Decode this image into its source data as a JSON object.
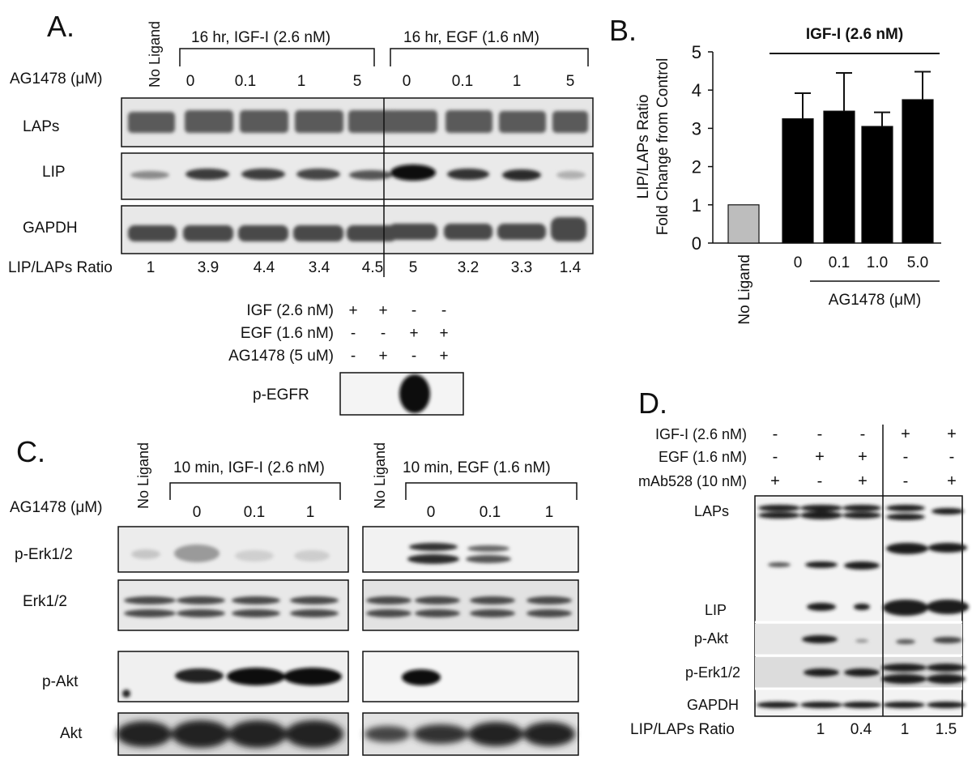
{
  "panel_a": {
    "letter": "A.",
    "lanes_top_label": "No Ligand",
    "group_igf_label": "16 hr,  IGF-I (2.6 nM)",
    "group_egf_label": "16 hr,  EGF (1.6 nM)",
    "ag_label": "AG1478 (μM)",
    "doses": [
      "0",
      "0.1",
      "1",
      "5",
      "0",
      "0.1",
      "1",
      "5"
    ],
    "blots": [
      "LAPs",
      "LIP",
      "GAPDH"
    ],
    "ratio_label": "LIP/LAPs Ratio",
    "ratios": [
      "1",
      "3.9",
      "4.4",
      "3.4",
      "4.5",
      "5",
      "3.2",
      "3.3",
      "1.4"
    ],
    "inset": {
      "rows": [
        {
          "label": "IGF (2.6 nM)",
          "marks": [
            "+",
            "+",
            "-",
            "-"
          ]
        },
        {
          "label": "EGF (1.6 nM)",
          "marks": [
            "-",
            "-",
            "+",
            "+"
          ]
        },
        {
          "label": "AG1478 (5 uM)",
          "marks": [
            "-",
            "+",
            "-",
            "+"
          ]
        }
      ],
      "blot_label": "p-EGFR"
    }
  },
  "panel_b": {
    "letter": "B.",
    "bracket_title": "IGF-I (2.6 nM)",
    "ylabel_line1": "LIP/LAPs Ratio",
    "ylabel_line2": "Fold Change from Control",
    "xlabel": "AG1478 (μM)",
    "chart_data": {
      "type": "bar",
      "categories": [
        "No Ligand",
        "0",
        "0.1",
        "1.0",
        "5.0"
      ],
      "values": [
        1.0,
        3.25,
        3.45,
        3.05,
        3.75
      ],
      "errors": [
        0,
        0.67,
        1.0,
        0.37,
        0.73
      ],
      "colors": [
        "#bdbdbd",
        "#000000",
        "#000000",
        "#000000",
        "#000000"
      ],
      "ylim": [
        0,
        5
      ],
      "yticks": [
        "0",
        "1",
        "2",
        "3",
        "4",
        "5"
      ],
      "ylabel": "LIP/LAPs Ratio Fold Change from Control",
      "xlabel": "AG1478 (μM)"
    }
  },
  "panel_c": {
    "letter": "C.",
    "no_ligand": "No Ligand",
    "group_igf_label": "10 min, IGF-I (2.6 nM)",
    "group_egf_label": "10 min, EGF (1.6 nM)",
    "ag_label": "AG1478 (μM)",
    "doses": [
      "0",
      "0.1",
      "1",
      "0",
      "0.1",
      "1"
    ],
    "blots": [
      "p-Erk1/2",
      "Erk1/2",
      "p-Akt",
      "Akt"
    ]
  },
  "panel_d": {
    "letter": "D.",
    "rows": [
      {
        "label": "IGF-I (2.6 nM)",
        "marks": [
          "-",
          "-",
          "-",
          "+",
          "+"
        ]
      },
      {
        "label": "EGF (1.6 nM)",
        "marks": [
          "-",
          "+",
          "+",
          "-",
          "-"
        ]
      },
      {
        "label": "mAb528 (10 nM)",
        "marks": [
          "+",
          "-",
          "+",
          "-",
          "+"
        ]
      }
    ],
    "blots": [
      "LAPs",
      "LIP",
      "p-Akt",
      "p-Erk1/2",
      "GAPDH"
    ],
    "ratio_label": "LIP/LAPs Ratio",
    "ratios": [
      "",
      "1",
      "0.4",
      "1",
      "1.5"
    ]
  }
}
